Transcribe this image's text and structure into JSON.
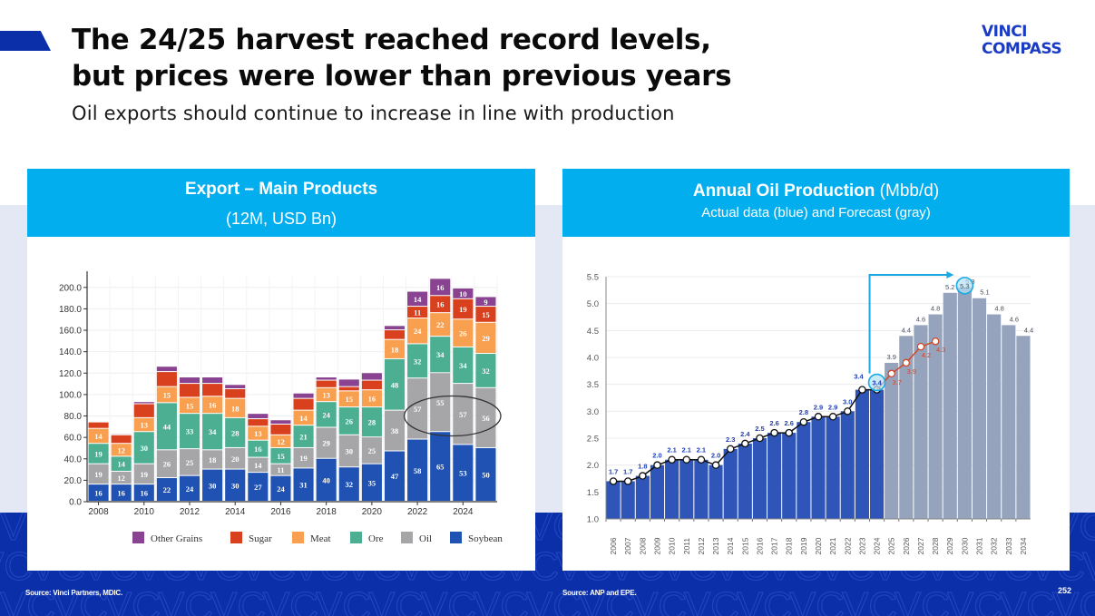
{
  "slide": {
    "title_line1": "The 24/25 harvest reached record levels,",
    "title_line2": "but prices were lower than previous years",
    "subtitle": "Oil exports should continue to increase in line with production",
    "logo_line1": "VINCI",
    "logo_line2": "COMPASS",
    "page_number": "252",
    "colors": {
      "brand_blue": "#0a2fa8",
      "header_cyan": "#03aeef",
      "band": "#e4e8f5"
    }
  },
  "left_panel": {
    "header_line1": "Export – Main Products",
    "header_line2": "(12M, USD Bn)",
    "source": "Source: Vinci Partners, MDIC."
  },
  "right_panel": {
    "header_bold": "Annual Oil Production",
    "header_unit": " (Mbb/d)",
    "header_line2": "Actual data (blue) and Forecast (gray)",
    "source": "Source: ANP and EPE."
  },
  "chart_data": [
    {
      "type": "bar",
      "stacked": true,
      "title": "Export – Main Products (12M, USD Bn)",
      "xlabel": "",
      "ylabel": "",
      "ylim": [
        0,
        210
      ],
      "yticks": [
        0,
        20,
        40,
        60,
        80,
        100,
        120,
        140,
        160,
        180,
        200
      ],
      "ytick_labels": [
        "0.0",
        "20.0",
        "40.0",
        "60.0",
        "80.0",
        "100.0",
        "120.0",
        "140.0",
        "160.0",
        "180.0",
        "200.0"
      ],
      "categories": [
        "2008",
        "2009",
        "2010",
        "2011",
        "2012",
        "2013",
        "2014",
        "2015",
        "2016",
        "2017",
        "2018",
        "2019",
        "2020",
        "2021",
        "2022",
        "2023",
        "2024",
        "2025"
      ],
      "xtick_labels": [
        "2008",
        "2010",
        "2012",
        "2014",
        "2016",
        "2018",
        "2020",
        "2022",
        "2024"
      ],
      "grid": true,
      "legend_position": "bottom",
      "series": [
        {
          "name": "Soybean",
          "color": "#1f52b3",
          "values": [
            16,
            16,
            16,
            22,
            24,
            30,
            30,
            27,
            24,
            31,
            40,
            32,
            35,
            47,
            58,
            65,
            53,
            50
          ],
          "labeled": [
            true,
            true,
            true,
            true,
            true,
            true,
            true,
            true,
            true,
            true,
            true,
            true,
            true,
            true,
            true,
            true,
            true,
            true
          ]
        },
        {
          "name": "Oil",
          "color": "#a6a6a8",
          "values": [
            19,
            12,
            19,
            26,
            25,
            18,
            20,
            14,
            11,
            19,
            29,
            30,
            25,
            38,
            57,
            55,
            57,
            56
          ],
          "labeled": [
            true,
            true,
            true,
            true,
            true,
            true,
            true,
            true,
            true,
            true,
            true,
            true,
            true,
            true,
            true,
            true,
            true,
            true
          ]
        },
        {
          "name": "Ore",
          "color": "#4caf91",
          "values": [
            19,
            14,
            30,
            44,
            33,
            34,
            28,
            16,
            15,
            21,
            24,
            26,
            28,
            48,
            32,
            34,
            34,
            32
          ],
          "labeled": [
            true,
            true,
            true,
            true,
            true,
            true,
            true,
            true,
            true,
            true,
            true,
            true,
            true,
            true,
            true,
            true,
            true,
            true
          ]
        },
        {
          "name": "Meat",
          "color": "#f9a050",
          "values": [
            14,
            12,
            13,
            15,
            15,
            16,
            18,
            13,
            12,
            14,
            13,
            15,
            16,
            18,
            24,
            22,
            26,
            29
          ],
          "labeled": [
            true,
            true,
            true,
            true,
            true,
            true,
            true,
            true,
            true,
            true,
            true,
            true,
            true,
            true,
            true,
            true,
            true,
            true
          ]
        },
        {
          "name": "Sugar",
          "color": "#d9411e",
          "values": [
            6,
            8,
            13,
            14,
            13,
            12,
            9,
            7,
            10,
            11,
            7,
            4,
            9,
            9,
            11,
            16,
            19,
            15
          ],
          "labeled": [
            false,
            false,
            false,
            false,
            false,
            false,
            false,
            false,
            false,
            false,
            false,
            false,
            false,
            false,
            true,
            true,
            true,
            true
          ]
        },
        {
          "name": "Other Grains",
          "color": "#8a4390",
          "values": [
            0,
            1,
            2,
            5,
            6,
            6,
            4,
            5,
            4,
            5,
            3,
            7,
            7,
            4,
            14,
            16,
            10,
            9
          ],
          "labeled": [
            false,
            false,
            false,
            false,
            false,
            false,
            false,
            false,
            false,
            false,
            false,
            false,
            false,
            false,
            true,
            true,
            true,
            true
          ]
        }
      ],
      "legend": [
        "Other Grains",
        "Sugar",
        "Meat",
        "Ore",
        "Oil",
        "Soybean"
      ],
      "annotations": [
        "ellipse highlighting Oil exports 2022–2025 (57, 55, 57, 56)"
      ]
    },
    {
      "type": "bar",
      "title": "Annual Oil Production (Mbb/d)",
      "subtitle": "Actual data (blue) and Forecast (gray)",
      "ylim": [
        1.0,
        5.5
      ],
      "yticks": [
        1.0,
        1.5,
        2.0,
        2.5,
        3.0,
        3.5,
        4.0,
        4.5,
        5.0,
        5.5
      ],
      "ytick_labels": [
        "1.0",
        "1.5",
        "2.0",
        "2.5",
        "3.0",
        "3.5",
        "4.0",
        "4.5",
        "5.0",
        "5.5"
      ],
      "categories": [
        "2006",
        "2007",
        "2008",
        "2009",
        "2010",
        "2011",
        "2012",
        "2013",
        "2014",
        "2015",
        "2016",
        "2017",
        "2018",
        "2019",
        "2020",
        "2021",
        "2022",
        "2023",
        "2024",
        "2025",
        "2026",
        "2027",
        "2028",
        "2029",
        "2030",
        "2031",
        "2032",
        "2033",
        "2034"
      ],
      "grid": true,
      "series": [
        {
          "name": "Actual",
          "color": "#2f55b8",
          "values": [
            1.7,
            1.7,
            1.8,
            2.0,
            2.1,
            2.1,
            2.1,
            2.0,
            2.3,
            2.4,
            2.5,
            2.6,
            2.6,
            2.8,
            2.9,
            2.9,
            3.0,
            3.4,
            3.4,
            null,
            null,
            null,
            null,
            null,
            null,
            null,
            null,
            null,
            null
          ]
        },
        {
          "name": "Forecast",
          "color": "#95a3bd",
          "values": [
            null,
            null,
            null,
            null,
            null,
            null,
            null,
            null,
            null,
            null,
            null,
            null,
            null,
            null,
            null,
            null,
            null,
            null,
            null,
            3.9,
            4.4,
            4.6,
            4.8,
            5.2,
            5.3,
            5.1,
            4.8,
            4.6,
            4.4
          ]
        },
        {
          "name": "Actual line",
          "type": "line",
          "color": "#111111",
          "labels_color": "#1f3fb5",
          "x": [
            "2006",
            "2007",
            "2008",
            "2009",
            "2010",
            "2011",
            "2012",
            "2013",
            "2014",
            "2015",
            "2016",
            "2017",
            "2018",
            "2019",
            "2020",
            "2021",
            "2022",
            "2023",
            "2024"
          ],
          "values": [
            1.7,
            1.7,
            1.8,
            2.0,
            2.1,
            2.1,
            2.1,
            2.0,
            2.3,
            2.4,
            2.5,
            2.6,
            2.6,
            2.8,
            2.9,
            2.9,
            3.0,
            3.4,
            3.4
          ]
        },
        {
          "name": "Previous forecast line",
          "type": "line",
          "color": "#cf4a2b",
          "x": [
            "2025",
            "2026",
            "2027",
            "2028"
          ],
          "values": [
            3.7,
            3.9,
            4.2,
            4.3
          ]
        }
      ],
      "annotations": [
        {
          "type": "circle",
          "at": "2024",
          "label": "3.4"
        },
        {
          "type": "circle",
          "at": "2030",
          "label": "5.3"
        },
        {
          "type": "arrow",
          "from": "2024",
          "to": "2030"
        }
      ]
    }
  ]
}
